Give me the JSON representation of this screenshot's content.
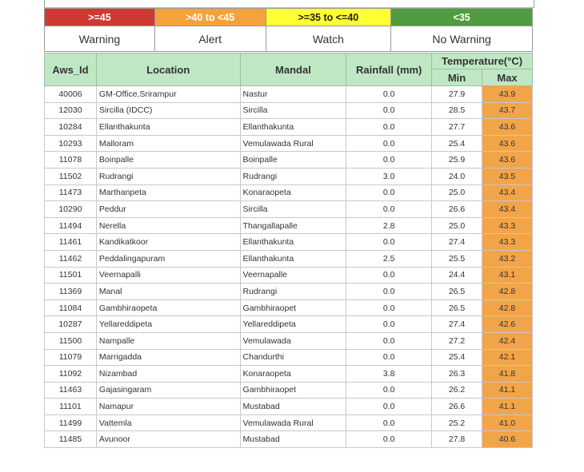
{
  "legend": {
    "ranges": [
      ">=45",
      ">40 to <45",
      ">=35 to <=40",
      "<35"
    ],
    "labels": [
      "Warning",
      "Alert",
      "Watch",
      "No Warning"
    ],
    "colors": [
      "#cc3a31",
      "#f4a23c",
      "#ffff33",
      "#4f9d3e"
    ]
  },
  "table": {
    "headers": {
      "aws_id": "Aws_Id",
      "location": "Location",
      "mandal": "Mandal",
      "rainfall": "Rainfall (mm)",
      "temperature": "Temperature(°C)",
      "min": "Min",
      "max": "Max"
    },
    "rows": [
      [
        "40006",
        "GM-Office,Srirampur",
        "Nastur",
        "0.0",
        "27.9",
        "43.9"
      ],
      [
        "12030",
        "Sircilla (IDCC)",
        "Sircilla",
        "0.0",
        "28.5",
        "43.7"
      ],
      [
        "10284",
        "Ellanthakunta",
        "Ellanthakunta",
        "0.0",
        "27.7",
        "43.6"
      ],
      [
        "10293",
        "Malloram",
        "Vemulawada Rural",
        "0.0",
        "25.4",
        "43.6"
      ],
      [
        "11078",
        "Boinpalle",
        "Boinpalle",
        "0.0",
        "25.9",
        "43.6"
      ],
      [
        "11502",
        "Rudrangi",
        "Rudrangi",
        "3.0",
        "24.0",
        "43.5"
      ],
      [
        "11473",
        "Marthanpeta",
        "Konaraopeta",
        "0.0",
        "25.0",
        "43.4"
      ],
      [
        "10290",
        "Peddur",
        "Sircilla",
        "0.0",
        "26.6",
        "43.4"
      ],
      [
        "11494",
        "Nerella",
        "Thangallapalle",
        "2.8",
        "25.0",
        "43.3"
      ],
      [
        "11461",
        "Kandikatkoor",
        "Ellanthakunta",
        "0.0",
        "27.4",
        "43.3"
      ],
      [
        "11462",
        "Peddalingapuram",
        "Ellanthakunta",
        "2.5",
        "25.5",
        "43.2"
      ],
      [
        "11501",
        "Veernapalli",
        "Veernapalle",
        "0.0",
        "24.4",
        "43.1"
      ],
      [
        "11369",
        "Manal",
        "Rudrangi",
        "0.0",
        "26.5",
        "42.8"
      ],
      [
        "11084",
        "Gambhiraopeta",
        "Gambhiraopet",
        "0.0",
        "26.5",
        "42.8"
      ],
      [
        "10287",
        "Yellareddipeta",
        "Yellareddipeta",
        "0.0",
        "27.4",
        "42.6"
      ],
      [
        "11500",
        "Nampalle",
        "Vemulawada",
        "0.0",
        "27.2",
        "42.4"
      ],
      [
        "11079",
        "Marrigadda",
        "Chandurthi",
        "0.0",
        "25.4",
        "42.1"
      ],
      [
        "11092",
        "Nizambad",
        "Konaraopeta",
        "3.8",
        "26.3",
        "41.8"
      ],
      [
        "11463",
        "Gajasingaram",
        "Gambhiraopet",
        "0.0",
        "26.2",
        "41.1"
      ],
      [
        "11101",
        "Namapur",
        "Mustabad",
        "0.0",
        "26.6",
        "41.1"
      ],
      [
        "11499",
        "Vattemla",
        "Vemulawada Rural",
        "0.0",
        "25.2",
        "41.0"
      ],
      [
        "11485",
        "Avunoor",
        "Mustabad",
        "0.0",
        "27.8",
        "40.6"
      ]
    ]
  }
}
